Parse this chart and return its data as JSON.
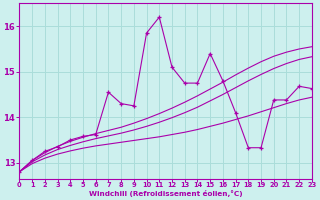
{
  "xlabel": "Windchill (Refroidissement éolien,°C)",
  "x": [
    0,
    1,
    2,
    3,
    4,
    5,
    6,
    7,
    8,
    9,
    10,
    11,
    12,
    13,
    14,
    15,
    16,
    17,
    18,
    19,
    20,
    21,
    22,
    23
  ],
  "line_noisy": [
    12.8,
    13.05,
    13.25,
    13.35,
    13.5,
    13.58,
    13.62,
    14.55,
    14.3,
    14.25,
    15.85,
    16.2,
    15.1,
    14.75,
    14.75,
    15.4,
    14.8,
    14.1,
    13.33,
    13.33,
    14.38,
    14.38,
    14.68,
    14.63
  ],
  "line_upper": [
    12.8,
    13.05,
    13.22,
    13.36,
    13.47,
    13.56,
    13.64,
    13.71,
    13.78,
    13.87,
    13.97,
    14.08,
    14.2,
    14.33,
    14.47,
    14.62,
    14.77,
    14.93,
    15.08,
    15.22,
    15.34,
    15.43,
    15.5,
    15.55
  ],
  "line_mid": [
    12.8,
    13.02,
    13.17,
    13.29,
    13.38,
    13.46,
    13.53,
    13.59,
    13.65,
    13.72,
    13.8,
    13.89,
    13.99,
    14.1,
    14.22,
    14.36,
    14.5,
    14.65,
    14.8,
    14.94,
    15.07,
    15.18,
    15.27,
    15.33
  ],
  "line_lower": [
    12.8,
    12.98,
    13.1,
    13.19,
    13.26,
    13.32,
    13.37,
    13.41,
    13.45,
    13.49,
    13.53,
    13.57,
    13.62,
    13.67,
    13.73,
    13.8,
    13.87,
    13.95,
    14.03,
    14.12,
    14.21,
    14.3,
    14.38,
    14.44
  ],
  "ylim": [
    12.65,
    16.5
  ],
  "yticks": [
    13,
    14,
    15,
    16
  ],
  "xlim": [
    0,
    23
  ],
  "bg_color": "#cdf0ee",
  "grid_color": "#aaddda",
  "line_color": "#aa00aa",
  "line_width": 0.8
}
